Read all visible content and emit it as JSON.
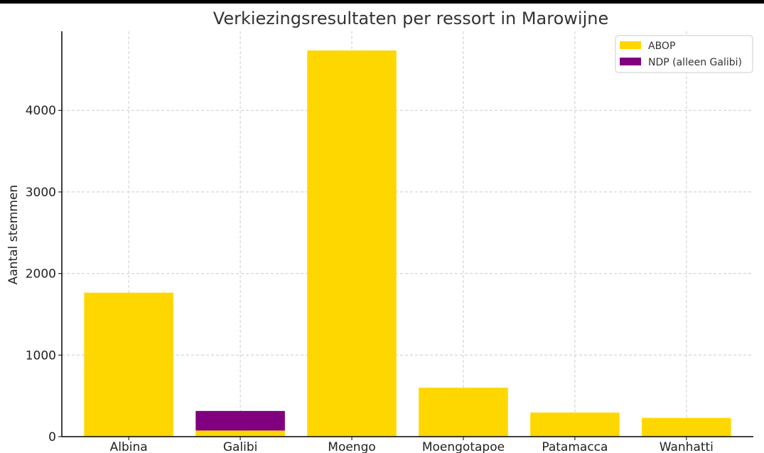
{
  "chart_data": {
    "type": "bar",
    "stacked": true,
    "title": "Verkiezingsresultaten per ressort in Marowijne",
    "xlabel": "",
    "ylabel": "Aantal stemmen",
    "categories": [
      "Albina",
      "Galibi",
      "Moengo",
      "Moengotapoe",
      "Patamacca",
      "Wanhatti"
    ],
    "series": [
      {
        "name": "ABOP",
        "color": "#FFD700",
        "values": [
          1765,
          75,
          4735,
          600,
          295,
          230
        ]
      },
      {
        "name": "NDP (alleen Galibi)",
        "color": "#800080",
        "values": [
          0,
          240,
          0,
          0,
          0,
          0
        ]
      }
    ],
    "yticks": [
      0,
      1000,
      2000,
      3000,
      4000
    ],
    "ylim": [
      0,
      4970
    ],
    "grid": true,
    "legend_position": "top-right"
  }
}
